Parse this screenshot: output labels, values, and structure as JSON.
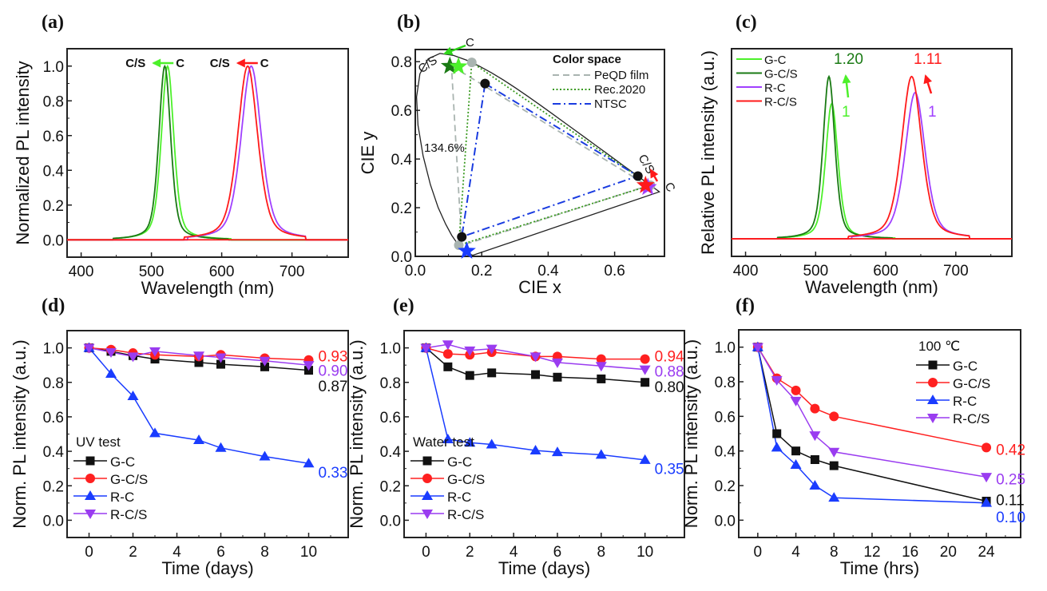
{
  "colors": {
    "g_c": "#4cf02a",
    "g_cs": "#1a7a14",
    "r_c": "#a040ff",
    "r_cs": "#ff1a1a",
    "black": "#111111",
    "red": "#ff2020",
    "blue": "#1a3cff",
    "purple": "#9a3cf0",
    "gray": "#a9b4b0",
    "rec_green": "#3a9a20",
    "ntsc_blue": "#1a3ce0"
  },
  "chart_data": [
    {
      "id": "a",
      "panel_label": "(a)",
      "type": "line",
      "xlabel": "Wavelength (nm)",
      "ylabel": "Normalized PL intensity",
      "xlim": [
        380,
        780
      ],
      "ylim": [
        -0.1,
        1.1
      ],
      "xticks": [
        400,
        500,
        600,
        700
      ],
      "yticks": [
        0.0,
        0.2,
        0.4,
        0.6,
        0.8,
        1.0
      ],
      "ytick_labels": [
        "0.0",
        "0.2",
        "0.4",
        "0.6",
        "0.8",
        "1.0"
      ],
      "series": [
        {
          "name": "G-C",
          "color_key": "g_c",
          "peak": 523,
          "fwhm": 21,
          "amplitude": 1.0
        },
        {
          "name": "G-C/S",
          "color_key": "g_cs",
          "peak": 519,
          "fwhm": 20,
          "amplitude": 1.0
        },
        {
          "name": "R-C",
          "color_key": "r_c",
          "peak": 642,
          "fwhm": 34,
          "amplitude": 1.0
        },
        {
          "name": "R-C/S",
          "color_key": "r_cs",
          "peak": 637,
          "fwhm": 34,
          "amplitude": 1.0
        }
      ],
      "annotations": [
        {
          "text_left": "C/S",
          "text_right": "C",
          "x": 520,
          "y": 1.05,
          "color_key": "g_c"
        },
        {
          "text_left": "C/S",
          "text_right": "C",
          "x": 640,
          "y": 1.05,
          "color_key": "r_cs"
        }
      ]
    },
    {
      "id": "b",
      "panel_label": "(b)",
      "type": "scatter",
      "xlabel": "CIE x",
      "ylabel": "CIE y",
      "xlim": [
        0.0,
        0.75
      ],
      "ylim": [
        0.0,
        0.85
      ],
      "xticks": [
        0.0,
        0.2,
        0.4,
        0.6
      ],
      "xtick_labels": [
        "0.0",
        "0.2",
        "0.4",
        "0.6"
      ],
      "yticks": [
        0.0,
        0.2,
        0.4,
        0.6,
        0.8
      ],
      "ytick_labels": [
        "0.0",
        "0.2",
        "0.4",
        "0.6",
        "0.8"
      ],
      "legend_title": "Color space",
      "legend": [
        {
          "name": "PeQD film",
          "style": "dashed",
          "color_key": "gray"
        },
        {
          "name": "Rec.2020",
          "style": "dotted",
          "color_key": "rec_green"
        },
        {
          "name": "NTSC",
          "style": "dashdot",
          "color_key": "ntsc_blue"
        }
      ],
      "gamut_triangles": [
        {
          "name": "PeQD film",
          "color_key": "gray",
          "style": "dashed",
          "points": [
            [
              0.109,
              0.783
            ],
            [
              0.7,
              0.29
            ],
            [
              0.14,
              0.045
            ]
          ]
        },
        {
          "name": "Rec.2020",
          "color_key": "rec_green",
          "style": "dotted",
          "points": [
            [
              0.17,
              0.797
            ],
            [
              0.708,
              0.292
            ],
            [
              0.131,
              0.046
            ]
          ]
        },
        {
          "name": "NTSC",
          "color_key": "ntsc_blue",
          "style": "dashdot",
          "points": [
            [
              0.21,
              0.71
            ],
            [
              0.67,
              0.33
            ],
            [
              0.14,
              0.08
            ]
          ]
        }
      ],
      "points": [
        {
          "label": "G-C/S star",
          "marker": "star",
          "color_key": "g_cs",
          "x": 0.104,
          "y": 0.782
        },
        {
          "label": "G-C star",
          "marker": "star",
          "color_key": "g_c",
          "x": 0.13,
          "y": 0.78
        },
        {
          "label": "R-C star",
          "marker": "star",
          "color_key": "r_c",
          "x": 0.7,
          "y": 0.284
        },
        {
          "label": "R-C/S star",
          "marker": "star",
          "color_key": "r_cs",
          "x": 0.693,
          "y": 0.292
        },
        {
          "label": "Blue star",
          "marker": "star",
          "color_key": "blue",
          "x": 0.155,
          "y": 0.022
        },
        {
          "label": "Rec.2020 G",
          "marker": "circle",
          "color_key": "gray",
          "x": 0.17,
          "y": 0.797
        },
        {
          "label": "Rec.2020 R",
          "marker": "circle",
          "color_key": "gray",
          "x": 0.708,
          "y": 0.292
        },
        {
          "label": "Rec.2020 B",
          "marker": "circle",
          "color_key": "gray",
          "x": 0.131,
          "y": 0.046
        },
        {
          "label": "NTSC G",
          "marker": "circle",
          "color_key": "black",
          "x": 0.21,
          "y": 0.71
        },
        {
          "label": "NTSC R",
          "marker": "circle",
          "color_key": "black",
          "x": 0.67,
          "y": 0.33
        },
        {
          "label": "NTSC B",
          "marker": "circle",
          "color_key": "black",
          "x": 0.14,
          "y": 0.08
        }
      ],
      "annotations": [
        {
          "text": "134.6%",
          "x": 0.03,
          "y": 0.56
        },
        {
          "text": "C/S",
          "x": 0.02,
          "y": 0.76,
          "rotate": -35
        },
        {
          "text": "C",
          "x": 0.155,
          "y": 0.875
        },
        {
          "text": "C/S",
          "x": 0.685,
          "y": 0.395,
          "rotate": 60
        },
        {
          "text": "C",
          "x": 0.755,
          "y": 0.27,
          "rotate": 60
        }
      ]
    },
    {
      "id": "c",
      "panel_label": "(c)",
      "type": "line",
      "xlabel": "Wavelength (nm)",
      "ylabel": "Relative PL intensity (a.u.)",
      "xlim": [
        380,
        780
      ],
      "ylim": [
        -0.12,
        1.3
      ],
      "xticks": [
        400,
        500,
        600,
        700
      ],
      "series": [
        {
          "name": "G-C",
          "color_key": "g_c",
          "peak": 523,
          "fwhm": 21,
          "amplitude": 0.925
        },
        {
          "name": "G-C/S",
          "color_key": "g_cs",
          "peak": 519,
          "fwhm": 20,
          "amplitude": 1.11
        },
        {
          "name": "R-C",
          "color_key": "r_c",
          "peak": 642,
          "fwhm": 34,
          "amplitude": 1.0
        },
        {
          "name": "R-C/S",
          "color_key": "r_cs",
          "peak": 637,
          "fwhm": 34,
          "amplitude": 1.11
        }
      ],
      "legend": [
        "G-C",
        "G-C/S",
        "R-C",
        "R-C/S"
      ],
      "annotations": [
        {
          "text": "1.20",
          "color_key": "g_cs",
          "x": 548,
          "y": 1.2
        },
        {
          "text": "1",
          "color_key": "g_c",
          "x": 540,
          "y": 0.72
        },
        {
          "text": "1.11",
          "color_key": "r_cs",
          "x": 660,
          "y": 1.2
        },
        {
          "text": "1",
          "color_key": "r_c",
          "x": 666,
          "y": 0.72
        }
      ]
    },
    {
      "id": "d",
      "panel_label": "(d)",
      "type": "line",
      "xlabel": "Time (days)",
      "ylabel": "Norm. PL intensity (a.u.)",
      "xlim": [
        -1,
        11.8
      ],
      "ylim": [
        -0.1,
        1.1
      ],
      "xticks": [
        0,
        2,
        4,
        6,
        8,
        10
      ],
      "yticks": [
        0.0,
        0.2,
        0.4,
        0.6,
        0.8,
        1.0
      ],
      "ytick_labels": [
        "0.0",
        "0.2",
        "0.4",
        "0.6",
        "0.8",
        "1.0"
      ],
      "legend_title": "UV test",
      "legend_position": "bottom-left",
      "series": [
        {
          "name": "G-C",
          "marker": "square",
          "color_key": "black",
          "x": [
            0,
            1,
            2,
            3,
            5,
            6,
            8,
            10
          ],
          "y": [
            1.0,
            0.98,
            0.955,
            0.935,
            0.915,
            0.905,
            0.89,
            0.87
          ]
        },
        {
          "name": "G-C/S",
          "marker": "circle",
          "color_key": "red",
          "x": [
            0,
            1,
            2,
            3,
            5,
            6,
            8,
            10
          ],
          "y": [
            1.0,
            0.99,
            0.97,
            0.96,
            0.95,
            0.96,
            0.94,
            0.93
          ]
        },
        {
          "name": "R-C",
          "marker": "triangle-up",
          "color_key": "blue",
          "x": [
            0,
            1,
            2,
            3,
            5,
            6,
            8,
            10
          ],
          "y": [
            1.0,
            0.85,
            0.72,
            0.505,
            0.465,
            0.42,
            0.37,
            0.33
          ]
        },
        {
          "name": "R-C/S",
          "marker": "triangle-down",
          "color_key": "purple",
          "x": [
            0,
            1,
            2,
            3,
            5,
            6,
            8,
            10
          ],
          "y": [
            1.0,
            0.975,
            0.95,
            0.98,
            0.955,
            0.945,
            0.925,
            0.9
          ]
        }
      ],
      "end_labels": [
        {
          "text": "0.93",
          "color_key": "red",
          "y": 0.955
        },
        {
          "text": "0.90",
          "color_key": "purple",
          "y": 0.87
        },
        {
          "text": "0.87",
          "color_key": "black",
          "y": 0.78
        },
        {
          "text": "0.33",
          "color_key": "blue",
          "y": 0.28
        }
      ]
    },
    {
      "id": "e",
      "panel_label": "(e)",
      "type": "line",
      "xlabel": "Time (days)",
      "ylabel": "Norm. PL intensity (a.u.)",
      "xlim": [
        -1,
        11.8
      ],
      "ylim": [
        -0.1,
        1.1
      ],
      "xticks": [
        0,
        2,
        4,
        6,
        8,
        10
      ],
      "yticks": [
        0.0,
        0.2,
        0.4,
        0.6,
        0.8,
        1.0
      ],
      "ytick_labels": [
        "0.0",
        "0.2",
        "0.4",
        "0.6",
        "0.8",
        "1.0"
      ],
      "legend_title": "Water test",
      "legend_position": "bottom-left",
      "series": [
        {
          "name": "G-C",
          "marker": "square",
          "color_key": "black",
          "x": [
            0,
            1,
            2,
            3,
            5,
            6,
            8,
            10
          ],
          "y": [
            1.0,
            0.89,
            0.84,
            0.855,
            0.845,
            0.83,
            0.82,
            0.8
          ]
        },
        {
          "name": "G-C/S",
          "marker": "circle",
          "color_key": "red",
          "x": [
            0,
            1,
            2,
            3,
            5,
            6,
            8,
            10
          ],
          "y": [
            1.0,
            0.965,
            0.96,
            0.975,
            0.95,
            0.95,
            0.935,
            0.935
          ]
        },
        {
          "name": "R-C",
          "marker": "triangle-up",
          "color_key": "blue",
          "x": [
            0,
            1,
            2,
            3,
            5,
            6,
            8,
            10
          ],
          "y": [
            1.0,
            0.47,
            0.45,
            0.44,
            0.405,
            0.395,
            0.38,
            0.35
          ]
        },
        {
          "name": "R-C/S",
          "marker": "triangle-down",
          "color_key": "purple",
          "x": [
            0,
            1,
            2,
            3,
            5,
            6,
            8,
            10
          ],
          "y": [
            1.0,
            1.02,
            0.985,
            0.995,
            0.95,
            0.915,
            0.895,
            0.875
          ]
        }
      ],
      "end_labels": [
        {
          "text": "0.94",
          "color_key": "red",
          "y": 0.955
        },
        {
          "text": "0.88",
          "color_key": "purple",
          "y": 0.865
        },
        {
          "text": "0.80",
          "color_key": "black",
          "y": 0.775
        },
        {
          "text": "0.35",
          "color_key": "blue",
          "y": 0.3
        }
      ]
    },
    {
      "id": "f",
      "panel_label": "(f)",
      "type": "line",
      "xlabel": "Time (hrs)",
      "ylabel": "Norm. PL intensity (a.u.)",
      "xlim": [
        -2,
        27.6
      ],
      "ylim": [
        -0.1,
        1.1
      ],
      "xticks": [
        0,
        4,
        8,
        12,
        16,
        20,
        24
      ],
      "yticks": [
        0.0,
        0.2,
        0.4,
        0.6,
        0.8,
        1.0
      ],
      "ytick_labels": [
        "0.0",
        "0.2",
        "0.4",
        "0.6",
        "0.8",
        "1.0"
      ],
      "legend_title": "100 ℃",
      "legend_position": "top-right",
      "series": [
        {
          "name": "G-C",
          "marker": "square",
          "color_key": "black",
          "x": [
            0,
            2,
            4,
            6,
            8,
            24
          ],
          "y": [
            1.0,
            0.5,
            0.4,
            0.35,
            0.315,
            0.11
          ]
        },
        {
          "name": "G-C/S",
          "marker": "circle",
          "color_key": "red",
          "x": [
            0,
            2,
            4,
            6,
            8,
            24
          ],
          "y": [
            1.0,
            0.82,
            0.75,
            0.645,
            0.6,
            0.42
          ]
        },
        {
          "name": "R-C",
          "marker": "triangle-up",
          "color_key": "blue",
          "x": [
            0,
            2,
            4,
            6,
            8,
            24
          ],
          "y": [
            1.0,
            0.42,
            0.32,
            0.2,
            0.13,
            0.1
          ]
        },
        {
          "name": "R-C/S",
          "marker": "triangle-down",
          "color_key": "purple",
          "x": [
            0,
            2,
            4,
            6,
            8,
            24
          ],
          "y": [
            1.0,
            0.81,
            0.69,
            0.49,
            0.395,
            0.25
          ]
        }
      ],
      "end_labels": [
        {
          "text": "0.42",
          "color_key": "red",
          "y": 0.41
        },
        {
          "text": "0.25",
          "color_key": "purple",
          "y": 0.24
        },
        {
          "text": "0.11",
          "color_key": "black",
          "y": 0.12
        },
        {
          "text": "0.10",
          "color_key": "blue",
          "y": 0.02
        }
      ]
    }
  ]
}
